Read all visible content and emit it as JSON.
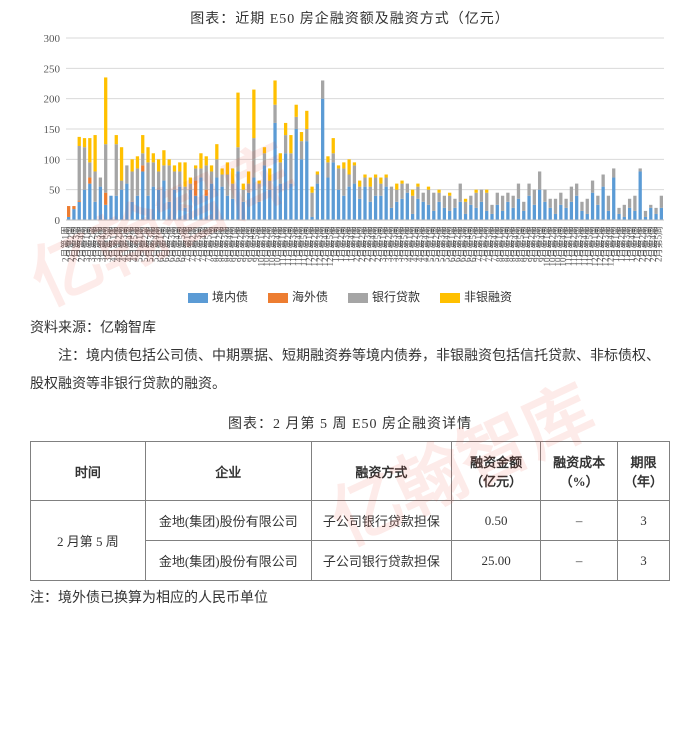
{
  "chart": {
    "title": "图表：近期 E50 房企融资额及融资方式（亿元）",
    "type": "stacked-bar",
    "ylim": [
      0,
      300
    ],
    "yticks": [
      0,
      50,
      100,
      150,
      200,
      250,
      300
    ],
    "ylabel_fontsize": 11,
    "xlabel_fontsize": 9,
    "background_color": "#ffffff",
    "grid_color": "#d9d9d9",
    "axis_color": "#bfbfbf",
    "series": [
      {
        "name": "境内债",
        "color": "#5b9bd5"
      },
      {
        "name": "海外债",
        "color": "#ed7d31"
      },
      {
        "name": "银行贷款",
        "color": "#a5a5a5"
      },
      {
        "name": "非银融资",
        "color": "#ffc000"
      }
    ],
    "categories": [
      "2月第1周",
      "2月第2周",
      "2月第3周",
      "2月第4周",
      "3月第1周",
      "3月第2周",
      "3月第3周",
      "3月第4周",
      "3月第5周",
      "4月第1周",
      "4月第2周",
      "4月第3周",
      "4月第4周",
      "4月第5周",
      "5月第1周",
      "5月第2周",
      "5月第3周",
      "5月第4周",
      "6月第1周",
      "6月第2周",
      "6月第3周",
      "6月第4周",
      "6月第5周",
      "7月第1周",
      "7月第2周",
      "7月第3周",
      "7月第4周",
      "7月第5周",
      "8月第1周",
      "8月第2周",
      "8月第3周",
      "8月第4周",
      "9月第1周",
      "9月第2周",
      "9月第3周",
      "9月第4周",
      "9月第5周",
      "10月第1周",
      "10月第2周",
      "10月第3周",
      "10月第4周",
      "11月第1周",
      "11月第2周",
      "11月第3周",
      "11月第4周",
      "11月第5周",
      "12月第1周",
      "12月第2周",
      "12月第3周",
      "12月第4周",
      "12月第5周",
      "1月第1周",
      "1月第2周",
      "1月第3周",
      "1月第4周",
      "2月第1周",
      "2月第2周",
      "2月第3周",
      "2月第4周",
      "2月第5周",
      "3月第1周",
      "3月第2周",
      "3月第3周",
      "3月第4周",
      "3月第5周",
      "4月第1周",
      "4月第2周",
      "4月第3周",
      "4月第4周",
      "5月第1周",
      "5月第2周",
      "5月第3周",
      "5月第4周",
      "6月第1周",
      "6月第2周",
      "6月第3周",
      "6月第4周",
      "6月第5周",
      "7月第1周",
      "7月第2周",
      "7月第3周",
      "7月第4周",
      "8月第1周",
      "8月第2周",
      "8月第3周",
      "8月第4周",
      "8月第5周",
      "9月第1周",
      "9月第2周",
      "9月第3周",
      "9月第4周",
      "10月第1周",
      "10月第2周",
      "10月第3周",
      "10月第4周",
      "11月第1周",
      "11月第2周",
      "11月第3周",
      "11月第4周",
      "11月第5周",
      "12月第1周",
      "12月第2周",
      "12月第3周",
      "12月第4周",
      "1月第1周",
      "1月第2周",
      "1月第3周",
      "1月第4周",
      "2月第1周",
      "2月第2周",
      "2月第3周",
      "2月第4周",
      "2月第5周"
    ],
    "data": {
      "境内债": [
        5,
        18,
        30,
        50,
        60,
        30,
        55,
        25,
        40,
        40,
        50,
        60,
        30,
        40,
        80,
        40,
        55,
        50,
        65,
        30,
        50,
        55,
        20,
        50,
        40,
        70,
        40,
        60,
        70,
        55,
        40,
        35,
        80,
        30,
        45,
        70,
        30,
        90,
        50,
        160,
        60,
        110,
        60,
        150,
        100,
        130,
        5,
        60,
        200,
        70,
        95,
        50,
        40,
        55,
        60,
        35,
        55,
        30,
        40,
        40,
        55,
        20,
        30,
        35,
        45,
        10,
        35,
        30,
        25,
        15,
        30,
        20,
        15,
        20,
        30,
        10,
        25,
        20,
        30,
        15,
        10,
        25,
        15,
        30,
        20,
        35,
        15,
        40,
        25,
        50,
        30,
        20,
        10,
        25,
        20,
        30,
        40,
        15,
        10,
        45,
        25,
        55,
        15,
        70,
        10,
        5,
        20,
        15,
        80,
        5,
        20,
        10,
        20
      ],
      "海外债": [
        18,
        5,
        2,
        0,
        10,
        0,
        0,
        20,
        0,
        0,
        0,
        0,
        0,
        0,
        10,
        0,
        0,
        0,
        0,
        0,
        0,
        0,
        0,
        0,
        25,
        0,
        10,
        0,
        0,
        0,
        0,
        0,
        0,
        0,
        0,
        0,
        0,
        0,
        0,
        0,
        0,
        0,
        0,
        0,
        0,
        0,
        0,
        0,
        0,
        0,
        0,
        0,
        0,
        0,
        0,
        0,
        0,
        0,
        0,
        0,
        0,
        0,
        0,
        0,
        0,
        0,
        0,
        0,
        0,
        0,
        0,
        0,
        0,
        0,
        0,
        0,
        0,
        0,
        0,
        0,
        0,
        0,
        0,
        0,
        0,
        0,
        0,
        0,
        0,
        0,
        0,
        0,
        0,
        0,
        0,
        0,
        0,
        0,
        0,
        0,
        0,
        0,
        0,
        0,
        0,
        0,
        0,
        0,
        0,
        0,
        0,
        0,
        0
      ],
      "银行贷款": [
        0,
        0,
        90,
        70,
        25,
        50,
        15,
        80,
        0,
        85,
        15,
        30,
        50,
        45,
        20,
        55,
        40,
        30,
        25,
        60,
        30,
        25,
        35,
        10,
        20,
        15,
        40,
        20,
        30,
        20,
        35,
        25,
        40,
        20,
        15,
        65,
        30,
        20,
        15,
        30,
        35,
        30,
        50,
        20,
        30,
        20,
        40,
        15,
        30,
        25,
        15,
        35,
        45,
        20,
        30,
        20,
        15,
        25,
        30,
        20,
        15,
        35,
        20,
        25,
        15,
        30,
        20,
        15,
        25,
        30,
        15,
        20,
        25,
        15,
        30,
        20,
        15,
        25,
        20,
        30,
        15,
        20,
        25,
        15,
        20,
        25,
        15,
        20,
        25,
        30,
        20,
        15,
        25,
        20,
        15,
        25,
        20,
        15,
        25,
        20,
        15,
        20,
        25,
        15,
        10,
        20,
        15,
        25,
        5,
        10,
        5,
        10,
        20
      ],
      "非银融资": [
        0,
        0,
        15,
        15,
        40,
        60,
        0,
        110,
        0,
        15,
        55,
        0,
        20,
        20,
        30,
        25,
        15,
        20,
        25,
        10,
        10,
        15,
        40,
        10,
        5,
        25,
        15,
        10,
        25,
        10,
        20,
        25,
        90,
        10,
        20,
        80,
        5,
        10,
        20,
        40,
        15,
        20,
        30,
        20,
        15,
        30,
        10,
        5,
        0,
        10,
        25,
        5,
        10,
        25,
        5,
        10,
        5,
        15,
        5,
        10,
        5,
        0,
        10,
        5,
        0,
        10,
        5,
        0,
        5,
        0,
        5,
        0,
        5,
        0,
        0,
        5,
        0,
        5,
        0,
        5,
        0,
        0,
        0,
        0,
        0,
        0,
        0,
        0,
        0,
        0,
        0,
        0,
        0,
        0,
        0,
        0,
        0,
        0,
        0,
        0,
        0,
        0,
        0,
        0,
        0,
        0,
        0,
        0,
        0,
        0,
        0,
        0,
        0
      ]
    }
  },
  "source": "资料来源：亿翰智库",
  "chart_note": "注：境内债包括公司债、中期票据、短期融资券等境内债券，非银融资包括信托贷款、非标债权、股权融资等非银行贷款的融资。",
  "table": {
    "title": "图表：2 月第 5 周 E50 房企融资详情",
    "columns": [
      "时间",
      "企业",
      "融资方式",
      "融资金额（亿元）",
      "融资成本（%）",
      "期限（年）"
    ],
    "col_widths": [
      "18%",
      "26%",
      "22%",
      "14%",
      "12%",
      "8%"
    ],
    "group_label": "2 月第 5 周",
    "rows": [
      [
        "金地(集团)股份有限公司",
        "子公司银行贷款担保",
        "0.50",
        "–",
        "3"
      ],
      [
        "金地(集团)股份有限公司",
        "子公司银行贷款担保",
        "25.00",
        "–",
        "3"
      ]
    ]
  },
  "table_note": "注：境外债已换算为相应的人民币单位",
  "watermark_text": "亿翰智库"
}
